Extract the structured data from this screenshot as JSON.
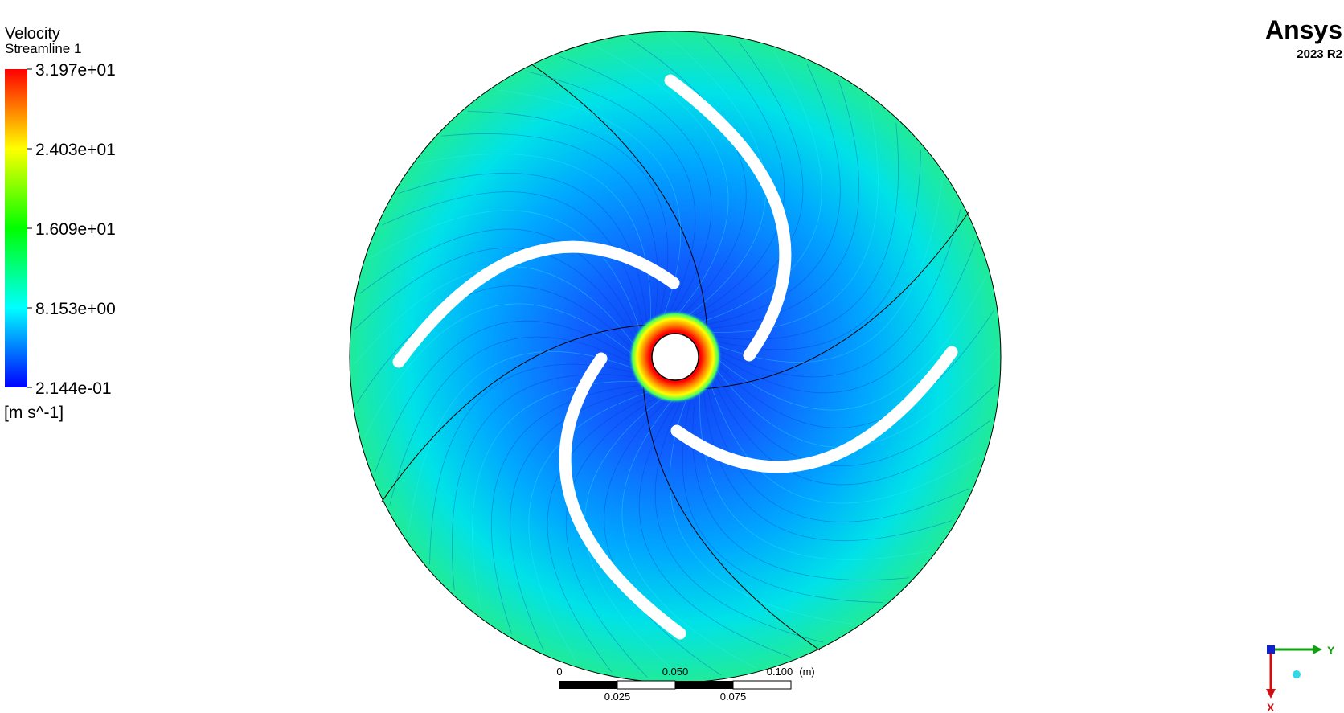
{
  "legend": {
    "title": "Velocity",
    "subtitle": "Streamline 1",
    "labels": [
      "3.197e+01",
      "2.403e+01",
      "1.609e+01",
      "8.153e+00",
      "2.144e-01"
    ],
    "unit": "[m s^-1]"
  },
  "logo": {
    "brand": "Ansys",
    "version": "2023 R2"
  },
  "scale_bar": {
    "top_labels": [
      "0",
      "0.050",
      "0.100"
    ],
    "unit": "(m)",
    "bottom_labels": [
      "0.025",
      "0.075"
    ]
  },
  "axes": {
    "y": "Y",
    "x": "X"
  }
}
